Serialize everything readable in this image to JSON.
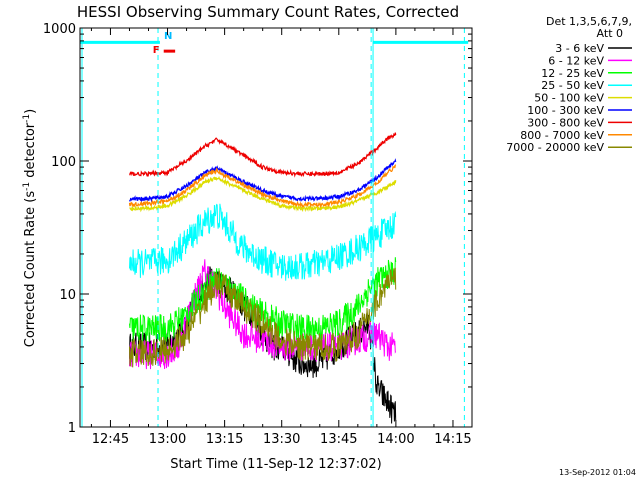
{
  "chart_data": {
    "type": "line",
    "title": "HESSI Observing Summary Count Rates, Corrected",
    "xlabel": "Start Time (11-Sep-12 12:37:02)",
    "ylabel": "Corrected Count Rate (s⁻¹ detector⁻¹)",
    "ylabel_main": "Corrected Count Rate (s",
    "ylabel_sup1": "-1",
    "ylabel_mid": " detector",
    "ylabel_sup2": "-1",
    "ylabel_end": ")",
    "yscale": "log",
    "ylim": [
      1,
      1000
    ],
    "xlim_minutes": [
      37.0,
      140.0
    ],
    "x_ticks": [
      {
        "m": 45,
        "label": "12:45"
      },
      {
        "m": 60,
        "label": "13:00"
      },
      {
        "m": 75,
        "label": "13:15"
      },
      {
        "m": 90,
        "label": "13:30"
      },
      {
        "m": 105,
        "label": "13:45"
      },
      {
        "m": 120,
        "label": "14:00"
      },
      {
        "m": 135,
        "label": "14:15"
      }
    ],
    "y_ticks": [
      {
        "v": 1,
        "label": "1"
      },
      {
        "v": 10,
        "label": "10"
      },
      {
        "v": 100,
        "label": "100"
      },
      {
        "v": 1000,
        "label": "1000"
      }
    ],
    "legend_header": [
      "Det 1,3,5,6,7,9,",
      "Att 0"
    ],
    "series": [
      {
        "name": "3 - 6 keV",
        "color": "#000000",
        "x": [
          50,
          55,
          60,
          65,
          68,
          70,
          72,
          75,
          78,
          80,
          83,
          85,
          88,
          90,
          95,
          100,
          105,
          110,
          113,
          115,
          118,
          120
        ],
        "y": [
          4,
          4,
          4,
          6,
          10,
          12,
          13,
          11,
          10,
          8,
          7,
          5,
          4,
          4,
          3,
          3,
          4,
          5,
          6,
          2,
          1.5,
          1.2
        ]
      },
      {
        "name": "6 - 12 keV",
        "color": "#ff00ff",
        "x": [
          50,
          55,
          60,
          63,
          66,
          70,
          72,
          75,
          78,
          80,
          85,
          90,
          95,
          100,
          105,
          110,
          115,
          118,
          120
        ],
        "y": [
          3.5,
          3.5,
          3.5,
          4,
          8,
          15,
          12,
          8,
          6,
          5,
          4.5,
          4,
          4,
          4,
          4,
          4.5,
          5,
          4,
          4
        ]
      },
      {
        "name": "12 - 25 keV",
        "color": "#00ff00",
        "x": [
          50,
          55,
          60,
          65,
          70,
          73,
          75,
          80,
          85,
          90,
          95,
          100,
          105,
          110,
          113,
          116,
          118,
          120
        ],
        "y": [
          5.5,
          5.5,
          5.5,
          7,
          11,
          13,
          12,
          9,
          7,
          6,
          5.5,
          5.5,
          6,
          8,
          11,
          13,
          14,
          15
        ]
      },
      {
        "name": "25 - 50 keV",
        "color": "#00ffff",
        "x": [
          50,
          55,
          60,
          65,
          70,
          73,
          75,
          78,
          80,
          85,
          90,
          95,
          100,
          105,
          110,
          115,
          118,
          120
        ],
        "y": [
          17,
          17,
          18,
          25,
          35,
          40,
          34,
          26,
          22,
          18,
          16,
          16,
          17,
          19,
          22,
          27,
          31,
          35
        ]
      },
      {
        "name": "50 - 100 keV",
        "color": "#dddd00",
        "x": [
          50,
          55,
          60,
          65,
          70,
          73,
          75,
          80,
          85,
          90,
          95,
          100,
          105,
          110,
          115,
          118,
          120
        ],
        "y": [
          44,
          44,
          46,
          55,
          70,
          75,
          70,
          60,
          52,
          46,
          44,
          44,
          45,
          50,
          58,
          65,
          70
        ]
      },
      {
        "name": "100 - 300 keV",
        "color": "#0000ff",
        "x": [
          50,
          55,
          60,
          65,
          70,
          73,
          75,
          80,
          85,
          90,
          95,
          100,
          105,
          110,
          115,
          118,
          120
        ],
        "y": [
          52,
          52,
          54,
          65,
          82,
          88,
          82,
          70,
          60,
          54,
          52,
          52,
          54,
          60,
          75,
          90,
          100
        ]
      },
      {
        "name": "300 - 800 keV",
        "color": "#ee0000",
        "x": [
          50,
          55,
          60,
          65,
          70,
          73,
          75,
          80,
          85,
          90,
          95,
          100,
          105,
          110,
          115,
          118,
          120
        ],
        "y": [
          80,
          80,
          82,
          100,
          130,
          145,
          135,
          110,
          90,
          82,
          80,
          80,
          82,
          95,
          125,
          150,
          160
        ]
      },
      {
        "name": "800 - 7000 keV",
        "color": "#ff8800",
        "x": [
          50,
          55,
          60,
          65,
          70,
          73,
          75,
          80,
          85,
          90,
          95,
          100,
          105,
          110,
          115,
          118,
          120
        ],
        "y": [
          47,
          48,
          50,
          60,
          78,
          85,
          78,
          66,
          56,
          50,
          47,
          47,
          49,
          55,
          68,
          82,
          92
        ]
      },
      {
        "name": "7000 - 20000 keV",
        "color": "#888800",
        "x": [
          50,
          55,
          60,
          65,
          70,
          73,
          75,
          80,
          85,
          90,
          95,
          100,
          105,
          110,
          113,
          116,
          118,
          120
        ],
        "y": [
          3.6,
          3.6,
          3.8,
          5,
          9,
          12,
          11,
          8,
          6,
          4.5,
          4,
          4,
          4,
          5,
          7,
          10,
          12,
          13
        ]
      }
    ],
    "attenuator_level": 780,
    "attenuator_segments": [
      [
        37,
        58
      ],
      [
        114,
        139
      ]
    ],
    "saa_lines": [
      57.5,
      113.5,
      138
    ],
    "night_line": 114,
    "flare_label": "F",
    "night_label": "N",
    "flare_segment": [
      59,
      62
    ],
    "footer": "13-Sep-2012 01:04"
  }
}
